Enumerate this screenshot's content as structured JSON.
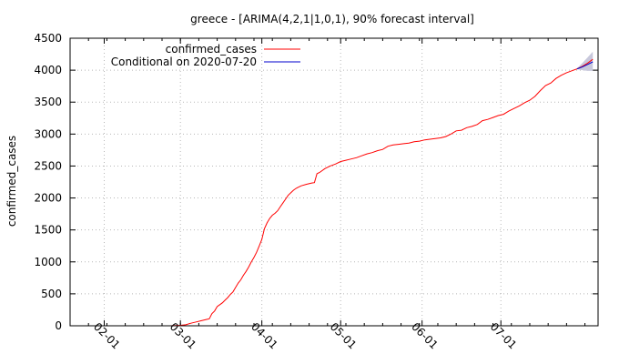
{
  "chart_data": {
    "type": "line",
    "title": "greece -  [ARIMA(4,2,1|1,0,1), 90% forecast interval]",
    "xlabel": "",
    "ylabel": "confirmed_cases",
    "ylim": [
      0,
      4500
    ],
    "yticks": [
      0,
      500,
      1000,
      1500,
      2000,
      2500,
      3000,
      3500,
      4000,
      4500
    ],
    "xlim": [
      "2020-01-19",
      "2020-08-07"
    ],
    "xticks": [
      {
        "date": "2020-02-01",
        "label": "02-01"
      },
      {
        "date": "2020-03-01",
        "label": "03-01"
      },
      {
        "date": "2020-04-01",
        "label": "04-01"
      },
      {
        "date": "2020-05-01",
        "label": "05-01"
      },
      {
        "date": "2020-06-01",
        "label": "06-01"
      },
      {
        "date": "2020-07-01",
        "label": "07-01"
      }
    ],
    "grid": true,
    "legend_position": "top-left",
    "series": [
      {
        "name": "confirmed_cases",
        "color": "#ff0000",
        "points": [
          [
            "2020-02-26",
            0
          ],
          [
            "2020-02-28",
            3
          ],
          [
            "2020-03-01",
            7
          ],
          [
            "2020-03-03",
            15
          ],
          [
            "2020-03-05",
            40
          ],
          [
            "2020-03-07",
            60
          ],
          [
            "2020-03-09",
            80
          ],
          [
            "2020-03-11",
            100
          ],
          [
            "2020-03-12",
            110
          ],
          [
            "2020-03-13",
            190
          ],
          [
            "2020-03-14",
            230
          ],
          [
            "2020-03-15",
            300
          ],
          [
            "2020-03-16",
            330
          ],
          [
            "2020-03-17",
            360
          ],
          [
            "2020-03-18",
            400
          ],
          [
            "2020-03-19",
            440
          ],
          [
            "2020-03-20",
            490
          ],
          [
            "2020-03-21",
            530
          ],
          [
            "2020-03-22",
            600
          ],
          [
            "2020-03-23",
            670
          ],
          [
            "2020-03-24",
            720
          ],
          [
            "2020-03-25",
            790
          ],
          [
            "2020-03-26",
            850
          ],
          [
            "2020-03-27",
            920
          ],
          [
            "2020-03-28",
            1000
          ],
          [
            "2020-03-29",
            1070
          ],
          [
            "2020-03-30",
            1150
          ],
          [
            "2020-03-31",
            1250
          ],
          [
            "2020-04-01",
            1350
          ],
          [
            "2020-04-02",
            1520
          ],
          [
            "2020-04-03",
            1610
          ],
          [
            "2020-04-04",
            1680
          ],
          [
            "2020-04-05",
            1730
          ],
          [
            "2020-04-06",
            1760
          ],
          [
            "2020-04-07",
            1800
          ],
          [
            "2020-04-08",
            1860
          ],
          [
            "2020-04-09",
            1920
          ],
          [
            "2020-04-10",
            1980
          ],
          [
            "2020-04-11",
            2040
          ],
          [
            "2020-04-12",
            2080
          ],
          [
            "2020-04-13",
            2120
          ],
          [
            "2020-04-14",
            2150
          ],
          [
            "2020-04-15",
            2170
          ],
          [
            "2020-04-16",
            2190
          ],
          [
            "2020-04-18",
            2215
          ],
          [
            "2020-04-20",
            2235
          ],
          [
            "2020-04-21",
            2240
          ],
          [
            "2020-04-22",
            2380
          ],
          [
            "2020-04-23",
            2400
          ],
          [
            "2020-04-25",
            2460
          ],
          [
            "2020-04-27",
            2500
          ],
          [
            "2020-04-29",
            2530
          ],
          [
            "2020-05-01",
            2570
          ],
          [
            "2020-05-03",
            2590
          ],
          [
            "2020-05-05",
            2610
          ],
          [
            "2020-05-07",
            2630
          ],
          [
            "2020-05-09",
            2660
          ],
          [
            "2020-05-11",
            2690
          ],
          [
            "2020-05-13",
            2710
          ],
          [
            "2020-05-15",
            2740
          ],
          [
            "2020-05-17",
            2760
          ],
          [
            "2020-05-19",
            2810
          ],
          [
            "2020-05-21",
            2830
          ],
          [
            "2020-05-23",
            2840
          ],
          [
            "2020-05-25",
            2850
          ],
          [
            "2020-05-27",
            2860
          ],
          [
            "2020-05-29",
            2880
          ],
          [
            "2020-05-31",
            2890
          ],
          [
            "2020-06-02",
            2910
          ],
          [
            "2020-06-04",
            2920
          ],
          [
            "2020-06-06",
            2930
          ],
          [
            "2020-06-08",
            2940
          ],
          [
            "2020-06-10",
            2960
          ],
          [
            "2020-06-12",
            3000
          ],
          [
            "2020-06-14",
            3050
          ],
          [
            "2020-06-16",
            3060
          ],
          [
            "2020-06-18",
            3100
          ],
          [
            "2020-06-20",
            3120
          ],
          [
            "2020-06-22",
            3150
          ],
          [
            "2020-06-24",
            3210
          ],
          [
            "2020-06-26",
            3230
          ],
          [
            "2020-06-28",
            3260
          ],
          [
            "2020-06-30",
            3290
          ],
          [
            "2020-07-02",
            3310
          ],
          [
            "2020-07-04",
            3360
          ],
          [
            "2020-07-06",
            3400
          ],
          [
            "2020-07-08",
            3440
          ],
          [
            "2020-07-10",
            3490
          ],
          [
            "2020-07-12",
            3530
          ],
          [
            "2020-07-14",
            3590
          ],
          [
            "2020-07-16",
            3680
          ],
          [
            "2020-07-18",
            3760
          ],
          [
            "2020-07-20",
            3800
          ],
          [
            "2020-07-22",
            3870
          ],
          [
            "2020-07-24",
            3920
          ],
          [
            "2020-07-26",
            3960
          ],
          [
            "2020-07-28",
            3990
          ],
          [
            "2020-07-30",
            4020
          ],
          [
            "2020-08-01",
            4060
          ],
          [
            "2020-08-03",
            4110
          ],
          [
            "2020-08-05",
            4170
          ]
        ]
      },
      {
        "name": "Conditional on 2020-07-20",
        "color": "#0000cc",
        "points": [
          [
            "2020-07-30",
            4020
          ],
          [
            "2020-08-01",
            4050
          ],
          [
            "2020-08-03",
            4090
          ],
          [
            "2020-08-05",
            4130
          ]
        ],
        "band": {
          "color": "#c8c8dc",
          "lower": [
            [
              "2020-07-30",
              4015
            ],
            [
              "2020-08-01",
              4000
            ],
            [
              "2020-08-03",
              3990
            ],
            [
              "2020-08-05",
              3990
            ]
          ],
          "upper": [
            [
              "2020-07-30",
              4030
            ],
            [
              "2020-08-01",
              4110
            ],
            [
              "2020-08-03",
              4200
            ],
            [
              "2020-08-05",
              4290
            ]
          ]
        }
      }
    ]
  }
}
